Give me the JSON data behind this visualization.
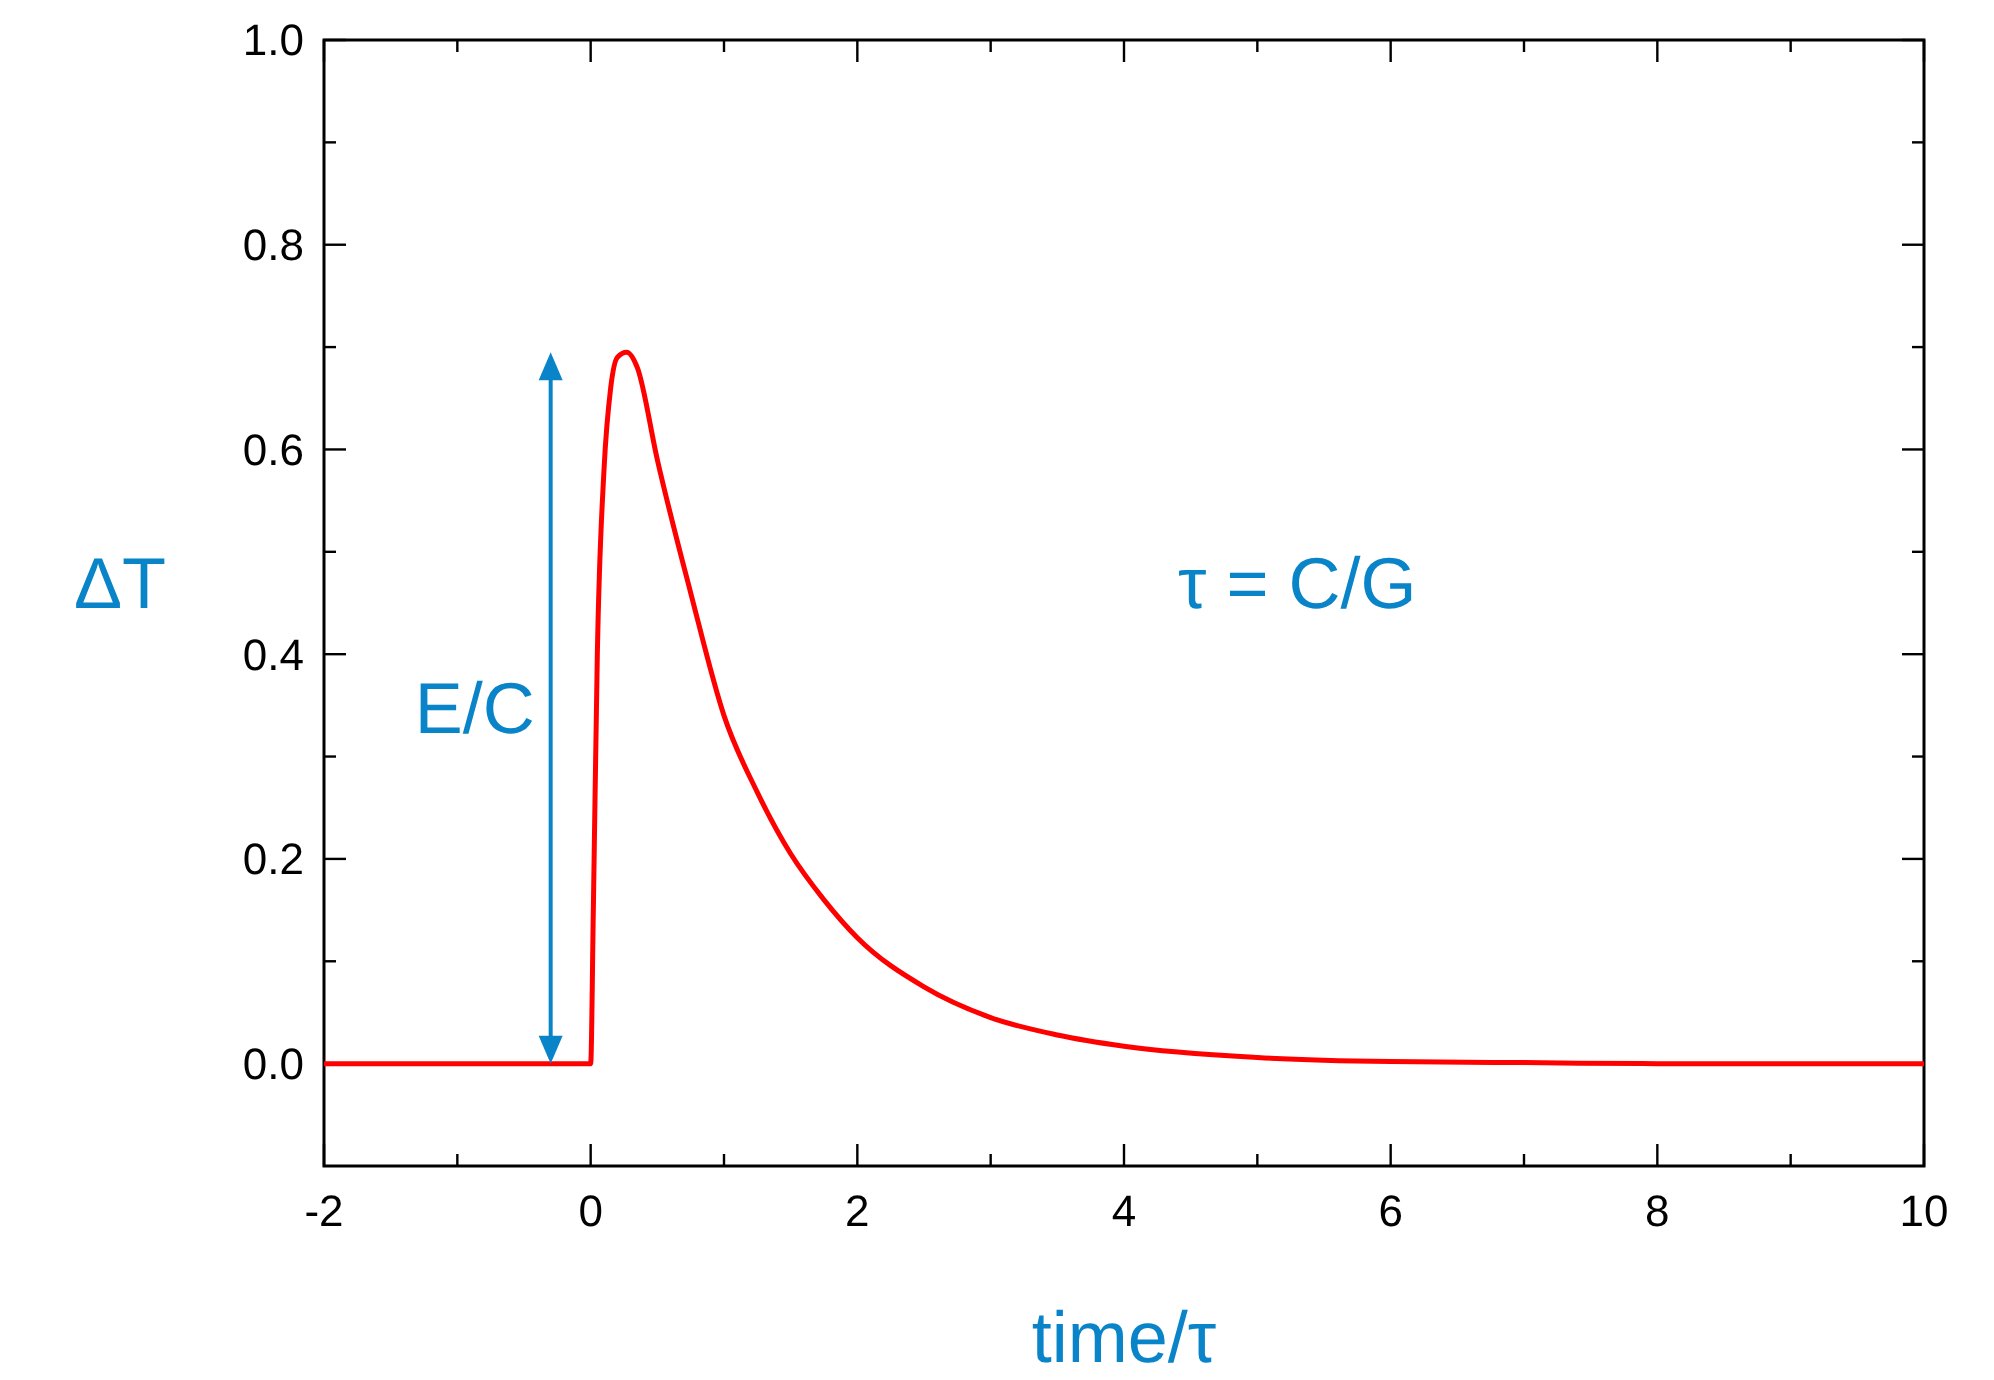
{
  "chart_data": {
    "type": "line",
    "xlabel": "time/τ",
    "ylabel": "ΔT",
    "xlim": [
      -2,
      10
    ],
    "ylim": [
      -0.1,
      1.0
    ],
    "xticks": [
      -2,
      {
        "value": -1,
        "label": null
      },
      0,
      {
        "value": 1,
        "label": null
      },
      2,
      {
        "value": 3,
        "label": null
      },
      4,
      {
        "value": 5,
        "label": null
      },
      6,
      {
        "value": 7,
        "label": null
      },
      8,
      {
        "value": 9,
        "label": null
      },
      10
    ],
    "yticks": [
      {
        "value": 0,
        "label": "0.0"
      },
      {
        "value": 0.1,
        "label": null
      },
      0.2,
      {
        "value": 0.3,
        "label": null
      },
      0.4,
      {
        "value": 0.5,
        "label": null
      },
      0.6,
      {
        "value": 0.7,
        "label": null
      },
      0.8,
      {
        "value": 0.9,
        "label": null
      },
      {
        "value": 1.0,
        "label": "1.0"
      }
    ],
    "grid": false,
    "marker": "none",
    "line_style": "solid",
    "series": [
      {
        "color": "#ff0000",
        "x": [
          -2,
          0,
          0.02,
          0.05,
          0.1,
          0.15,
          0.2,
          0.27,
          0.35,
          0.5,
          0.75,
          1.0,
          1.25,
          1.5,
          1.75,
          2.0,
          2.5,
          3.0,
          3.5,
          4.0,
          5.0,
          6.0,
          7.0,
          8.0,
          10.0
        ],
        "values": [
          0,
          0,
          0.15,
          0.4,
          0.58,
          0.66,
          0.69,
          0.695,
          0.68,
          0.59,
          0.46,
          0.34,
          0.265,
          0.205,
          0.16,
          0.123,
          0.075,
          0.045,
          0.028,
          0.017,
          0.006,
          0.002,
          0.001,
          0,
          0
        ]
      }
    ],
    "annotations": [
      "E/C",
      "τ = C/G"
    ]
  }
}
